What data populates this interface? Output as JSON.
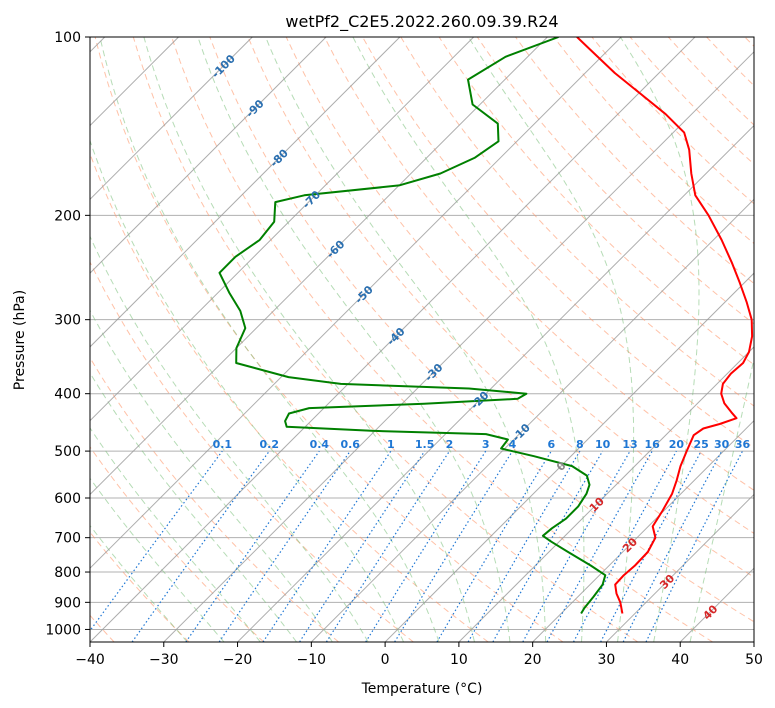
{
  "chart_data": {
    "type": "line",
    "title": "wetPf2_C2E5.2022.260.09.39.R24",
    "xlabel": "Temperature (°C)",
    "ylabel": "Pressure (hPa)",
    "xlim": [
      -40,
      50
    ],
    "ylim": [
      1050,
      100
    ],
    "y_scale": "log",
    "x_ticks": [
      -40,
      -30,
      -20,
      -10,
      0,
      10,
      20,
      30,
      40,
      50
    ],
    "y_ticks": [
      100,
      200,
      300,
      400,
      500,
      600,
      700,
      800,
      900,
      1000
    ],
    "x_tick_labels": [
      "−40",
      "−30",
      "−20",
      "−10",
      "0",
      "10",
      "20",
      "30",
      "40",
      "50"
    ],
    "y_tick_labels": [
      "100",
      "200",
      "300",
      "400",
      "500",
      "600",
      "700",
      "800",
      "900",
      "1000"
    ],
    "isotherms_skewed": [
      -140,
      -130,
      -120,
      -110,
      -100,
      -90,
      -80,
      -70,
      -60,
      -50,
      -40,
      -30,
      -20,
      -10,
      0,
      10,
      20,
      30,
      40,
      50
    ],
    "dry_adiabats_theta_c": [
      -50,
      -40,
      -30,
      -20,
      -10,
      0,
      10,
      20,
      30,
      40,
      50,
      60,
      70,
      80,
      90,
      100,
      110,
      120,
      130,
      140,
      150,
      160,
      170,
      180,
      190
    ],
    "moist_adiabats_start_c": [
      -30,
      -25,
      -20,
      -15,
      -10,
      -5,
      0,
      5,
      10,
      15,
      20,
      25,
      30,
      35,
      40
    ],
    "mixing_ratio_lines": [
      {
        "w": 0.1,
        "label": "0.1"
      },
      {
        "w": 0.2,
        "label": "0.2"
      },
      {
        "w": 0.4,
        "label": "0.4"
      },
      {
        "w": 0.6,
        "label": "0.6"
      },
      {
        "w": 1,
        "label": "1"
      },
      {
        "w": 1.5,
        "label": "1.5"
      },
      {
        "w": 2,
        "label": "2"
      },
      {
        "w": 3,
        "label": "3"
      },
      {
        "w": 4,
        "label": "4"
      },
      {
        "w": 6,
        "label": "6"
      },
      {
        "w": 8,
        "label": "8"
      },
      {
        "w": 10,
        "label": "10"
      },
      {
        "w": 13,
        "label": "13"
      },
      {
        "w": 16,
        "label": "16"
      },
      {
        "w": 20,
        "label": "20"
      },
      {
        "w": 25,
        "label": "25"
      },
      {
        "w": 30,
        "label": "30"
      },
      {
        "w": 36,
        "label": "36"
      }
    ],
    "isotherm_labels_blue": [
      {
        "t": -100,
        "p": 112,
        "label": "-100"
      },
      {
        "t": -90,
        "p": 132,
        "label": "-90"
      },
      {
        "t": -80,
        "p": 160,
        "label": "-80"
      },
      {
        "t": -70,
        "p": 188,
        "label": "-70"
      },
      {
        "t": -60,
        "p": 228,
        "label": "-60"
      },
      {
        "t": -50,
        "p": 272,
        "label": "-50"
      },
      {
        "t": -40,
        "p": 320,
        "label": "-40"
      },
      {
        "t": -30,
        "p": 368,
        "label": "-30"
      },
      {
        "t": -20,
        "p": 410,
        "label": "-20"
      },
      {
        "t": -10,
        "p": 465,
        "label": "-10"
      }
    ],
    "isotherm_labels_gray": [
      {
        "t": 0,
        "p": 530,
        "label": "0"
      }
    ],
    "isotherm_labels_red": [
      {
        "t": 10,
        "p": 615,
        "label": "10"
      },
      {
        "t": 20,
        "p": 720,
        "label": "20"
      },
      {
        "t": 30,
        "p": 830,
        "label": "30"
      },
      {
        "t": 40,
        "p": 935,
        "label": "40"
      }
    ],
    "colors": {
      "temperature": "#ff0000",
      "dewpoint": "#008000",
      "grid": "#b0b0b0",
      "isotherm": "#999999",
      "dry_adiabat": "#ff9a6e",
      "moist_adiabat": "#7ac07a",
      "mixing_ratio": "#1f77d4",
      "label_blue": "#2a6fb0",
      "label_red": "#d62728",
      "label_gray": "#888888"
    },
    "series": [
      {
        "name": "Temperature",
        "points": [
          {
            "p": 940,
            "t": 28.3
          },
          {
            "p": 900,
            "t": 26.5
          },
          {
            "p": 870,
            "t": 24.8
          },
          {
            "p": 840,
            "t": 23.4
          },
          {
            "p": 810,
            "t": 23.3
          },
          {
            "p": 780,
            "t": 23.5
          },
          {
            "p": 740,
            "t": 23.4
          },
          {
            "p": 700,
            "t": 22.5
          },
          {
            "p": 670,
            "t": 20.6
          },
          {
            "p": 630,
            "t": 19.8
          },
          {
            "p": 590,
            "t": 18.8
          },
          {
            "p": 560,
            "t": 17.6
          },
          {
            "p": 530,
            "t": 16.2
          },
          {
            "p": 500,
            "t": 15.0
          },
          {
            "p": 470,
            "t": 13.8
          },
          {
            "p": 458,
            "t": 14.2
          },
          {
            "p": 450,
            "t": 15.8
          },
          {
            "p": 440,
            "t": 17.3
          },
          {
            "p": 430,
            "t": 15.8
          },
          {
            "p": 415,
            "t": 13.6
          },
          {
            "p": 400,
            "t": 11.9
          },
          {
            "p": 385,
            "t": 10.8
          },
          {
            "p": 370,
            "t": 10.5
          },
          {
            "p": 355,
            "t": 10.7
          },
          {
            "p": 340,
            "t": 10.0
          },
          {
            "p": 320,
            "t": 8.3
          },
          {
            "p": 300,
            "t": 6.0
          },
          {
            "p": 280,
            "t": 2.9
          },
          {
            "p": 260,
            "t": -0.6
          },
          {
            "p": 240,
            "t": -4.5
          },
          {
            "p": 220,
            "t": -8.9
          },
          {
            "p": 200,
            "t": -14.0
          },
          {
            "p": 185,
            "t": -18.5
          },
          {
            "p": 170,
            "t": -22.0
          },
          {
            "p": 155,
            "t": -25.5
          },
          {
            "p": 145,
            "t": -28.5
          },
          {
            "p": 135,
            "t": -33.5
          },
          {
            "p": 125,
            "t": -39.5
          },
          {
            "p": 115,
            "t": -46.0
          },
          {
            "p": 105,
            "t": -52.5
          },
          {
            "p": 100,
            "t": -56.0
          }
        ]
      },
      {
        "name": "Dewpoint",
        "points": [
          {
            "p": 940,
            "t": 22.7
          },
          {
            "p": 920,
            "t": 22.4
          },
          {
            "p": 880,
            "t": 22.1
          },
          {
            "p": 840,
            "t": 21.7
          },
          {
            "p": 810,
            "t": 20.8
          },
          {
            "p": 780,
            "t": 17.5
          },
          {
            "p": 740,
            "t": 12.6
          },
          {
            "p": 710,
            "t": 8.8
          },
          {
            "p": 695,
            "t": 7.0
          },
          {
            "p": 675,
            "t": 7.2
          },
          {
            "p": 650,
            "t": 7.8
          },
          {
            "p": 620,
            "t": 7.8
          },
          {
            "p": 590,
            "t": 7.2
          },
          {
            "p": 570,
            "t": 6.4
          },
          {
            "p": 550,
            "t": 4.8
          },
          {
            "p": 530,
            "t": 1.5
          },
          {
            "p": 510,
            "t": -5.0
          },
          {
            "p": 495,
            "t": -10.5
          },
          {
            "p": 478,
            "t": -10.8
          },
          {
            "p": 468,
            "t": -14.5
          },
          {
            "p": 462,
            "t": -30.5
          },
          {
            "p": 455,
            "t": -42.5
          },
          {
            "p": 445,
            "t": -43.5
          },
          {
            "p": 432,
            "t": -44.0
          },
          {
            "p": 423,
            "t": -42.0
          },
          {
            "p": 416,
            "t": -27.0
          },
          {
            "p": 408,
            "t": -15.0
          },
          {
            "p": 400,
            "t": -14.5
          },
          {
            "p": 392,
            "t": -23.0
          },
          {
            "p": 385,
            "t": -41.0
          },
          {
            "p": 375,
            "t": -49.0
          },
          {
            "p": 355,
            "t": -58.0
          },
          {
            "p": 335,
            "t": -60.0
          },
          {
            "p": 310,
            "t": -61.5
          },
          {
            "p": 290,
            "t": -64.5
          },
          {
            "p": 270,
            "t": -68.5
          },
          {
            "p": 250,
            "t": -72.5
          },
          {
            "p": 235,
            "t": -72.5
          },
          {
            "p": 220,
            "t": -71.5
          },
          {
            "p": 205,
            "t": -72.0
          },
          {
            "p": 190,
            "t": -74.5
          },
          {
            "p": 185,
            "t": -71.5
          },
          {
            "p": 178,
            "t": -60.0
          },
          {
            "p": 170,
            "t": -56.0
          },
          {
            "p": 160,
            "t": -53.5
          },
          {
            "p": 150,
            "t": -52.5
          },
          {
            "p": 140,
            "t": -55.0
          },
          {
            "p": 130,
            "t": -61.0
          },
          {
            "p": 118,
            "t": -65.0
          },
          {
            "p": 108,
            "t": -63.0
          },
          {
            "p": 100,
            "t": -58.5
          }
        ]
      }
    ]
  }
}
